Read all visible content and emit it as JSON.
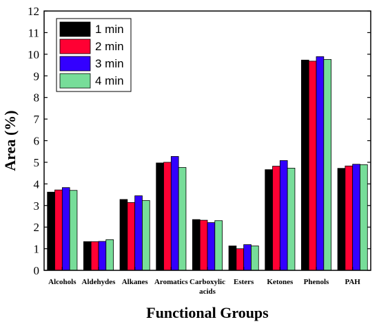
{
  "chart_data": {
    "type": "bar",
    "title": "",
    "xlabel": "Functional Groups",
    "ylabel": "Area (%)",
    "ylim": [
      0,
      12
    ],
    "yticks": [
      0,
      1,
      2,
      3,
      4,
      5,
      6,
      7,
      8,
      9,
      10,
      11,
      12
    ],
    "grid": false,
    "legend_position": "top-left",
    "categories": [
      "Alcohols",
      "Aldehydes",
      "Alkanes",
      "Aromatics",
      "Carboxylic acids",
      "Esters",
      "Ketones",
      "Phenols",
      "PAH"
    ],
    "series": [
      {
        "name": "1 min",
        "color": "#000000",
        "values": [
          3.62,
          1.33,
          3.28,
          4.97,
          2.35,
          1.13,
          4.66,
          9.73,
          4.72
        ]
      },
      {
        "name": "2 min",
        "color": "#ff0033",
        "values": [
          3.72,
          1.33,
          3.14,
          5.0,
          2.32,
          1.0,
          4.82,
          9.68,
          4.83
        ]
      },
      {
        "name": "3 min",
        "color": "#3300ff",
        "values": [
          3.83,
          1.34,
          3.45,
          5.27,
          2.21,
          1.19,
          5.08,
          9.89,
          4.91
        ]
      },
      {
        "name": "4 min",
        "color": "#77dd99",
        "values": [
          3.7,
          1.42,
          3.23,
          4.76,
          2.3,
          1.13,
          4.73,
          9.76,
          4.89
        ]
      }
    ]
  }
}
